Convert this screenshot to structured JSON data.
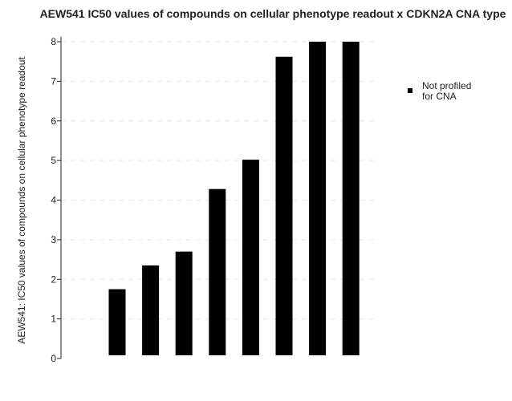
{
  "chart_data": {
    "type": "bar",
    "title": "AEW541 IC50 values of compounds on cellular phenotype readout x CDKN2A CNA type",
    "xlabel": "",
    "ylabel": "AEW541: IC50 values of compounds on cellular phenotype readout",
    "ylim": [
      0,
      8
    ],
    "yticks": [
      0,
      1,
      2,
      3,
      4,
      5,
      6,
      7,
      8
    ],
    "grid": true,
    "legend": {
      "placement": "right",
      "entries": [
        {
          "label_lines": [
            "Not profiled",
            "for CNA"
          ],
          "color": "#000000"
        }
      ]
    },
    "series": [
      {
        "color": "#000000",
        "values": [
          1.75,
          2.35,
          2.7,
          4.28,
          5.02,
          7.62,
          8.0,
          8.0
        ]
      }
    ]
  }
}
